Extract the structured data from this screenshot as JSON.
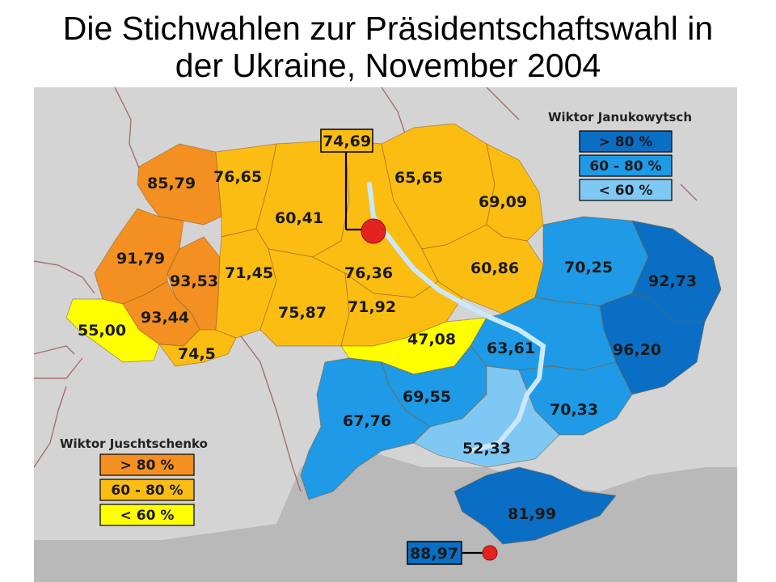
{
  "title_line1": "Die Stichwahlen zur Präsidentschaftswahl in",
  "title_line2": "der Ukraine, November 2004",
  "legend_janukowytsch": {
    "title": "Wiktor Janukowytsch",
    "items": [
      {
        "label": "> 80 %",
        "color": "#0a6fc4"
      },
      {
        "label": "60 - 80 %",
        "color": "#1e9ae6"
      },
      {
        "label": "< 60 %",
        "color": "#7fc8f4"
      }
    ]
  },
  "legend_juschtschenko": {
    "title": "Wiktor Juschtschenko",
    "items": [
      {
        "label": "> 80 %",
        "color": "#f39021"
      },
      {
        "label": "60 - 80 %",
        "color": "#fcbd12"
      },
      {
        "label": "< 60 %",
        "color": "#ffff00"
      }
    ]
  },
  "callout_kyiv": "74,69",
  "callout_sevastopol": "88,97",
  "regions": {
    "volyn": "85,79",
    "rivne": "76,65",
    "zhytomyr": "60,41",
    "chernihiv": "65,65",
    "sumy": "69,09",
    "lviv": "91,79",
    "ternopil": "93,53",
    "khmelnytskyi": "71,45",
    "kyiv_oblast": "76,36",
    "poltava": "60,86",
    "kharkiv": "70,25",
    "luhansk": "92,73",
    "zakarpattia": "55,00",
    "ivano_frankivsk": "93,44",
    "vinnytsia": "75,87",
    "cherkasy": "71,92",
    "kirovohrad": "47,08",
    "dnipropetrovsk": "63,61",
    "donetsk": "96,20",
    "chernivtsi": "74,5",
    "mykolaiv": "69,55",
    "odesa": "67,76",
    "zaporizhzhia": "70,33",
    "kherson": "52,33",
    "crimea": "81,99"
  }
}
